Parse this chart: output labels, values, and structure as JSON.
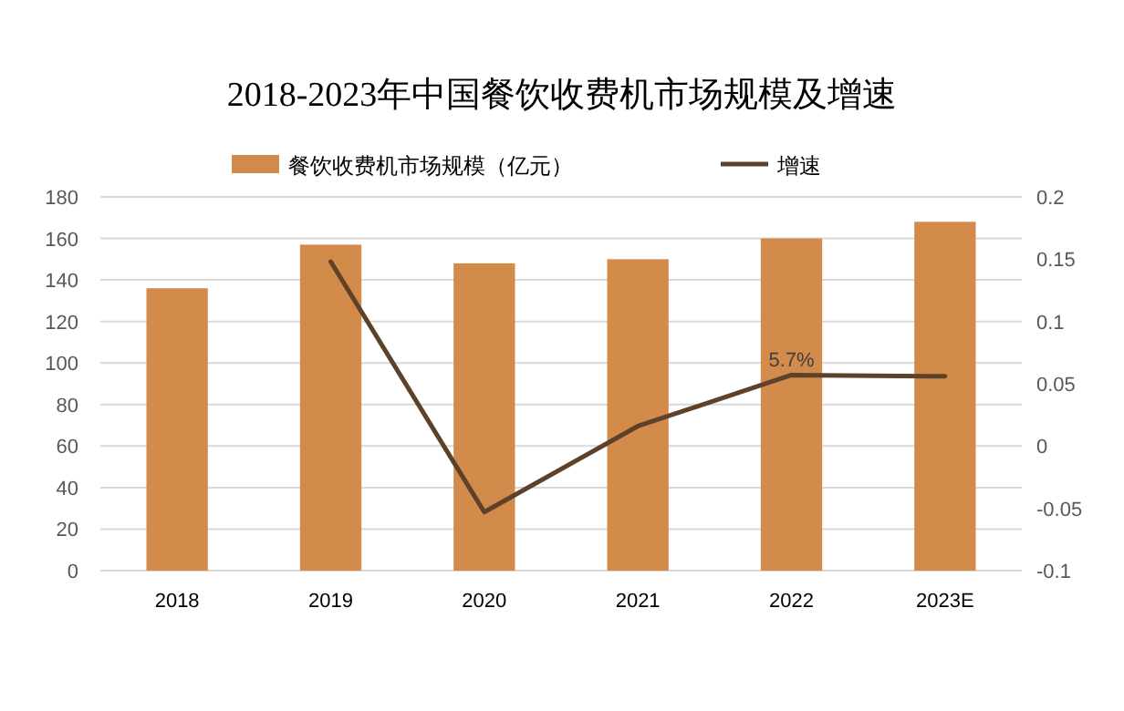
{
  "chart_data": {
    "type": "bar",
    "title": "2018-2023年中国餐饮收费机市场规模及增速",
    "categories": [
      "2018",
      "2019",
      "2020",
      "2021",
      "2022",
      "2023E"
    ],
    "series": [
      {
        "name": "餐饮收费机市场规模（亿元）",
        "color": "#d38b4b",
        "values": [
          136,
          157,
          148,
          150,
          160,
          168
        ]
      },
      {
        "name": "增速",
        "type": "line",
        "axis": "y2",
        "color": "#5e4129",
        "values": [
          null,
          0.148,
          -0.053,
          0.016,
          0.057,
          0.056
        ]
      }
    ],
    "ylim": [
      0,
      180
    ],
    "yticks": [
      0,
      20,
      40,
      60,
      80,
      100,
      120,
      140,
      160,
      180
    ],
    "y2lim": [
      -0.1,
      0.2
    ],
    "y2ticks": [
      -0.1,
      -0.05,
      0,
      0.05,
      0.1,
      0.15,
      0.2
    ],
    "annotations": [
      {
        "text": "5.7%",
        "x": "2022",
        "y": 94
      }
    ],
    "grid": "y",
    "legend": "top",
    "line_style": "solid",
    "marker": "none"
  }
}
